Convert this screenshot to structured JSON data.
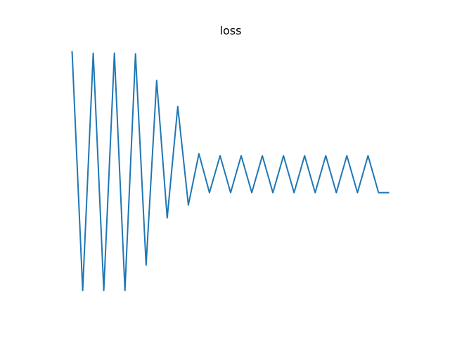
{
  "chart_data": {
    "type": "line",
    "title": "loss",
    "xlabel": "",
    "ylabel": "",
    "axes_visible": false,
    "grid": false,
    "color": "#1f77b4",
    "xlim": [
      -0.75,
      15.75
    ],
    "ylim": [
      0.085,
      0.465
    ],
    "x": [
      0,
      0.5,
      1,
      1.5,
      2,
      2.5,
      3,
      3.5,
      4,
      4.5,
      5,
      5.5,
      6,
      6.5,
      7,
      7.5,
      8,
      8.5,
      9,
      9.5,
      10,
      10.5,
      11,
      11.5,
      12,
      12.5,
      13,
      13.5,
      14,
      14.5,
      15
    ],
    "y": [
      0.45,
      0.1,
      0.447,
      0.1,
      0.447,
      0.1,
      0.446,
      0.137,
      0.407,
      0.206,
      0.369,
      0.225,
      0.3,
      0.243,
      0.297,
      0.243,
      0.297,
      0.243,
      0.297,
      0.243,
      0.297,
      0.243,
      0.297,
      0.243,
      0.297,
      0.243,
      0.297,
      0.243,
      0.297,
      0.243,
      0.243
    ]
  }
}
